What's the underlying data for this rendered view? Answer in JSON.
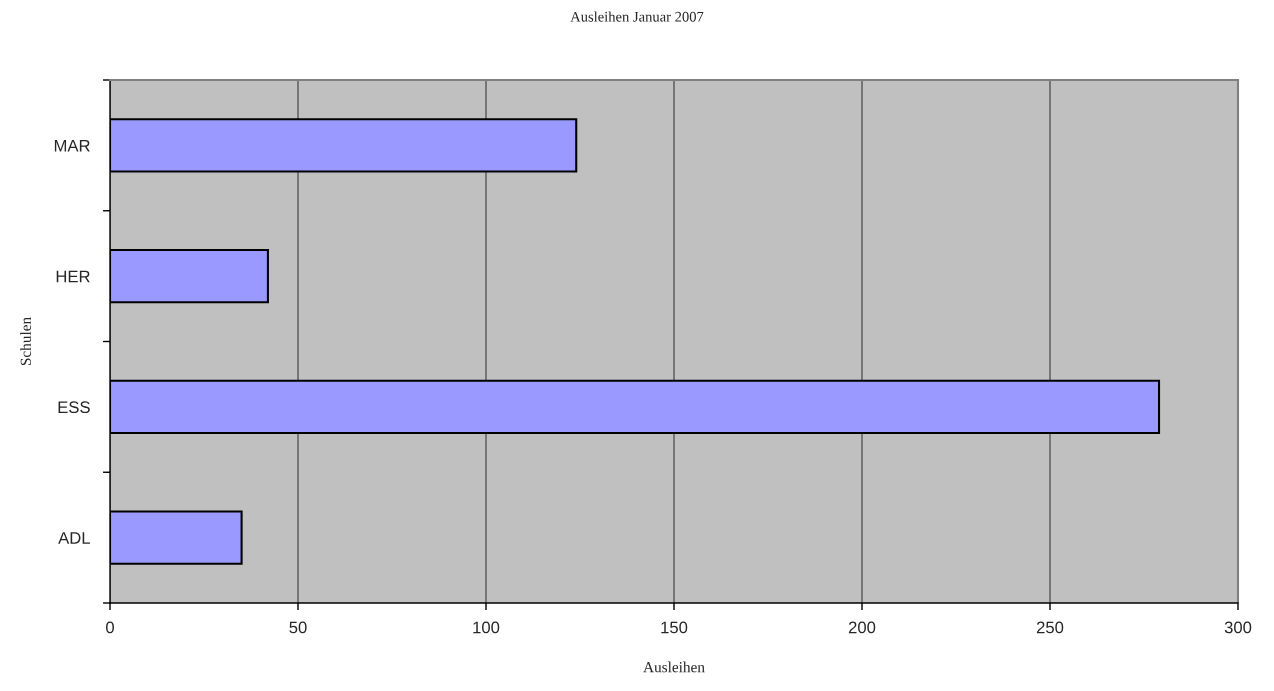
{
  "chart_data": {
    "type": "bar",
    "orientation": "horizontal",
    "title": "Ausleihen Januar 2007",
    "xlabel": "Ausleihen",
    "ylabel": "Schulen",
    "categories": [
      "MAR",
      "HER",
      "ESS",
      "ADL"
    ],
    "values": [
      124,
      42,
      279,
      35
    ],
    "color": "#9999ff",
    "xlim": [
      0,
      300
    ],
    "xticks": [
      0,
      50,
      100,
      150,
      200,
      250,
      300
    ],
    "grid": "x"
  }
}
